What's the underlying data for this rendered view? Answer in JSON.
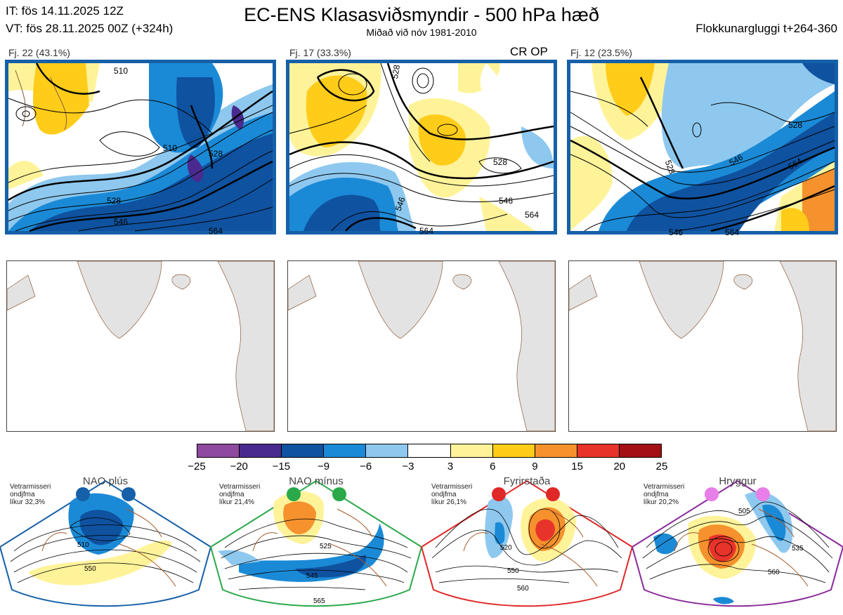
{
  "header": {
    "initial_time": "IT: fös 14.11.2025 12Z",
    "valid_time": "VT: fös 28.11.2025 00Z  (+324h)",
    "title": "EC-ENS Klasasviðsmyndir - 500 hPa hæð",
    "subtitle": "Miðað við nóv 1981-2010",
    "cluster_window": "Flokkunargluggi t+264-360"
  },
  "clusters": [
    {
      "label": "Fj. 22 (43.1%)",
      "contours": [
        "510",
        "528",
        "546",
        "564",
        "510",
        "528"
      ]
    },
    {
      "label": "Fj. 17 (33.3%)",
      "extra": "CR OP",
      "contours": [
        "528",
        "546",
        "564",
        "546",
        "528",
        "564"
      ]
    },
    {
      "label": "Fj. 12 (23.5%)",
      "contours": [
        "528",
        "546",
        "564",
        "528",
        "546",
        "564"
      ]
    }
  ],
  "colorbar": {
    "ticks": [
      "−25",
      "−20",
      "−15",
      "−9",
      "−6",
      "−3",
      "3",
      "6",
      "9",
      "15",
      "20",
      "25"
    ],
    "colors": [
      "#8e4a9e",
      "#4b2a8f",
      "#0f52a0",
      "#1b8ad6",
      "#8ec8ef",
      "#ffffff",
      "#fff39a",
      "#ffcc1a",
      "#f5922d",
      "#e8332b",
      "#a30f13"
    ]
  },
  "regimes": [
    {
      "title": "NAO plús",
      "prob_lines": [
        "Vetrarmisseri",
        "ondjfma",
        "líkur 32,3%"
      ],
      "color": "#1560a8",
      "contours": [
        "510",
        "550"
      ]
    },
    {
      "title": "NAO mínus",
      "prob_lines": [
        "Vetrarmisseri",
        "ondjfma",
        "líkur 21,4%"
      ],
      "color": "#2aa84a",
      "contours": [
        "525",
        "545",
        "565"
      ]
    },
    {
      "title": "Fyrirstaða",
      "prob_lines": [
        "Vetrarmisseri",
        "ondjfma",
        "líkur 26,1%"
      ],
      "color": "#e02828",
      "contours": [
        "520",
        "550",
        "560"
      ]
    },
    {
      "title": "Hryggur",
      "prob_lines": [
        "Vetrarmisseri",
        "ondjfma",
        "líkur 20,2%"
      ],
      "color": "#8a2a9a",
      "dot_color": "#e87ee8",
      "contours": [
        "505",
        "535",
        "560"
      ]
    }
  ]
}
